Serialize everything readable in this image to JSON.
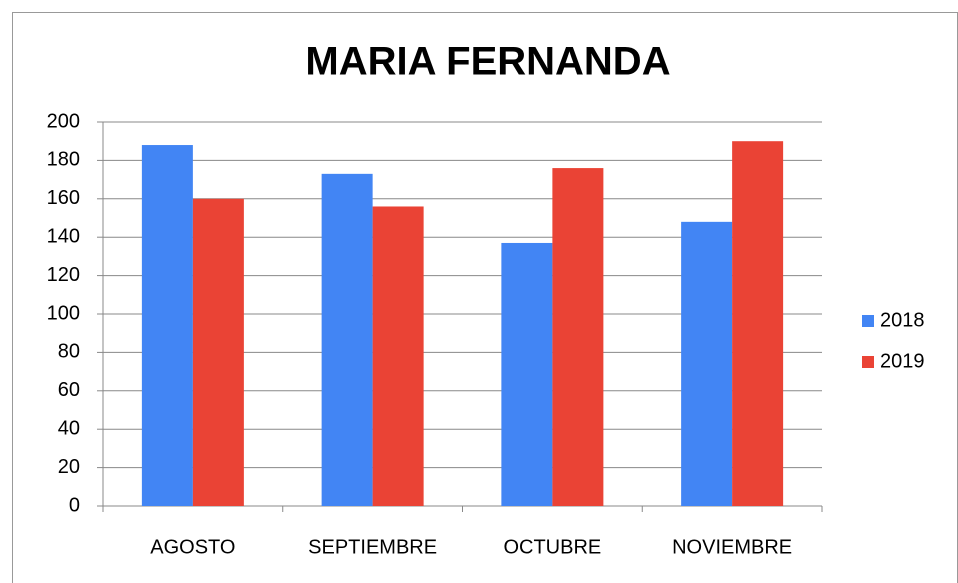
{
  "chart_data": {
    "type": "bar",
    "title": "MARIA FERNANDA",
    "categories": [
      "AGOSTO",
      "SEPTIEMBRE",
      "OCTUBRE",
      "NOVIEMBRE"
    ],
    "series": [
      {
        "name": "2018",
        "color": "#4285f4",
        "values": [
          188,
          173,
          137,
          148
        ]
      },
      {
        "name": "2019",
        "color": "#ea4335",
        "values": [
          160,
          156,
          176,
          190
        ]
      }
    ],
    "ylim": [
      0,
      200
    ],
    "yticks": [
      0,
      20,
      40,
      60,
      80,
      100,
      120,
      140,
      160,
      180,
      200
    ],
    "grid": true,
    "legend": "right"
  }
}
